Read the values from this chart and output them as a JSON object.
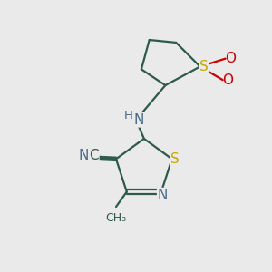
{
  "background_color": "#eaeaea",
  "bond_color": "#2d5a4a",
  "sulfur_color": "#c8a800",
  "nitrogen_color": "#4a6a8a",
  "oxygen_color": "#cc0000",
  "line_width": 1.6,
  "figsize": [
    3.0,
    3.0
  ],
  "dpi": 100,
  "xlim": [
    0,
    10
  ],
  "ylim": [
    0,
    10
  ]
}
